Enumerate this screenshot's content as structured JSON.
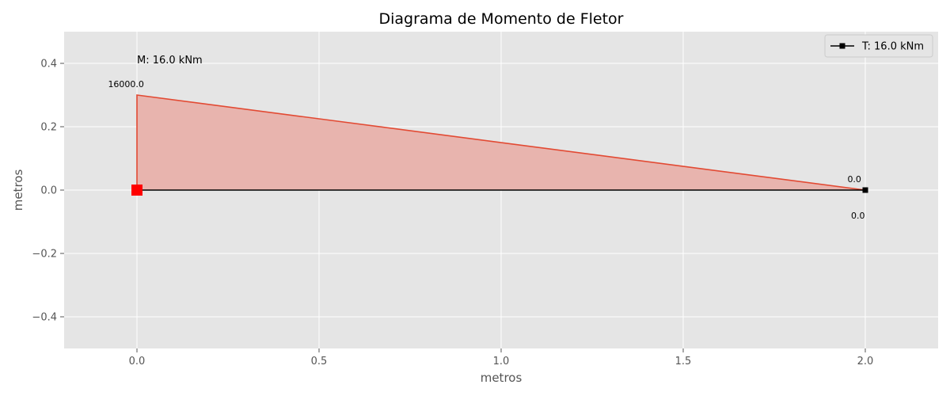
{
  "chart_data": {
    "type": "area",
    "title": "Diagrama de Momento de Fletor",
    "xlabel": "metros",
    "ylabel": "metros",
    "xlim": [
      -0.2,
      2.2
    ],
    "ylim": [
      -0.5,
      0.5
    ],
    "xticks": [
      0.0,
      0.5,
      1.0,
      1.5,
      2.0
    ],
    "xtick_labels": [
      "0.0",
      "0.5",
      "1.0",
      "1.5",
      "2.0"
    ],
    "yticks": [
      -0.4,
      -0.2,
      0.0,
      0.2,
      0.4
    ],
    "ytick_labels": [
      "−0.4",
      "−0.2",
      "0.0",
      "0.2",
      "0.4"
    ],
    "grid": true,
    "legend_position": "top-right",
    "colors": {
      "background": "#e5e5e5",
      "moment": "#e24a33",
      "moment_fill": "#e8b4ae",
      "beam": "#000000",
      "support": "#ff0000",
      "grid": "#ffffff"
    },
    "moment_diagram": {
      "x": [
        0.0,
        0.0,
        2.0
      ],
      "y": [
        0.0,
        0.3,
        0.0
      ]
    },
    "beam": {
      "x": [
        0.0,
        2.0
      ],
      "y": [
        0.0,
        0.0
      ],
      "legend": "T: 16.0 kNm"
    },
    "support": {
      "x": 0.0,
      "y": 0.0,
      "marker": "square"
    },
    "end_marker": {
      "x": 2.0,
      "y": 0.0,
      "marker": "square"
    },
    "annotations": [
      {
        "text": "M: 16.0 kNm",
        "x": 0.0,
        "y": 0.4,
        "align": "start",
        "size": "normal"
      },
      {
        "text": "16000.0",
        "x": -0.03,
        "y": 0.325,
        "align": "middle",
        "size": "small"
      },
      {
        "text": "0.0",
        "x": 1.97,
        "y": 0.025,
        "align": "middle",
        "size": "small"
      },
      {
        "text": "0.0",
        "x": 1.98,
        "y": -0.09,
        "align": "middle",
        "size": "small"
      }
    ]
  }
}
